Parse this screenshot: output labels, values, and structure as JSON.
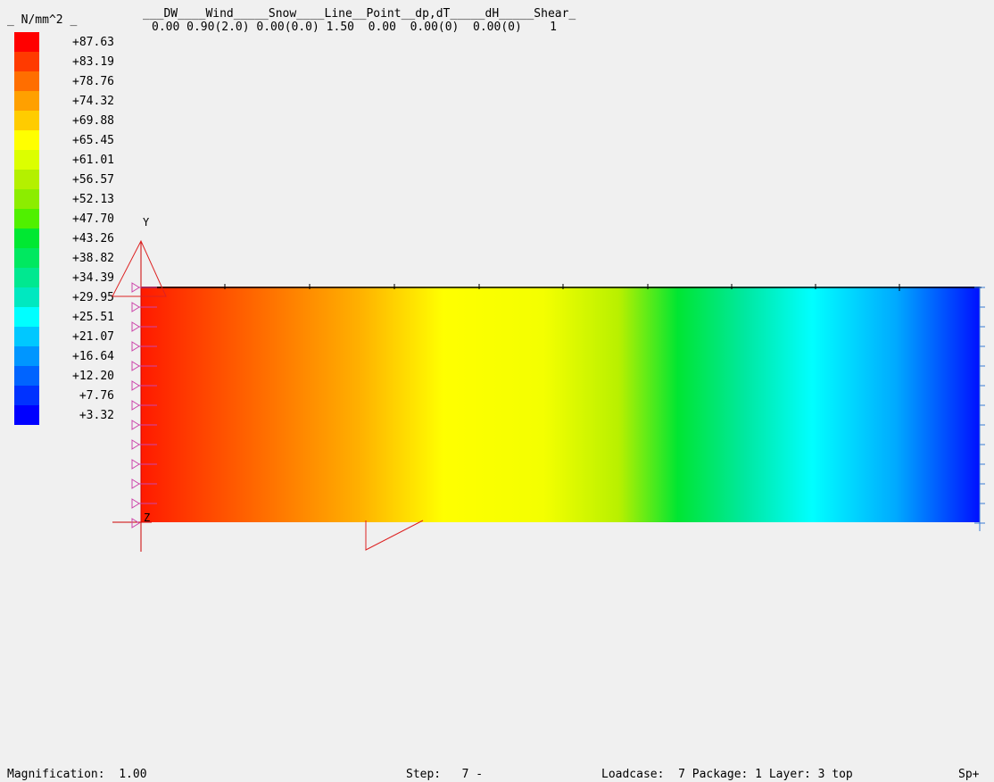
{
  "legend": {
    "unit": "_ N/mm^2 _",
    "entries": [
      {
        "value": "+87.63",
        "color": "#ff0000"
      },
      {
        "value": "+83.19",
        "color": "#ff3a00"
      },
      {
        "value": "+78.76",
        "color": "#ff6e00"
      },
      {
        "value": "+74.32",
        "color": "#ffa000"
      },
      {
        "value": "+69.88",
        "color": "#ffcc00"
      },
      {
        "value": "+65.45",
        "color": "#ffff00"
      },
      {
        "value": "+61.01",
        "color": "#dcff00"
      },
      {
        "value": "+56.57",
        "color": "#b4f000"
      },
      {
        "value": "+52.13",
        "color": "#8ced00"
      },
      {
        "value": "+47.70",
        "color": "#50f000"
      },
      {
        "value": "+43.26",
        "color": "#00e832"
      },
      {
        "value": "+38.82",
        "color": "#00e860"
      },
      {
        "value": "+34.39",
        "color": "#00e890"
      },
      {
        "value": "+29.95",
        "color": "#00e8c0"
      },
      {
        "value": "+25.51",
        "color": "#00ffff"
      },
      {
        "value": "+21.07",
        "color": "#00c8ff"
      },
      {
        "value": "+16.64",
        "color": "#0096ff"
      },
      {
        "value": "+12.20",
        "color": "#0064ff"
      },
      {
        "value": "+7.76",
        "color": "#0032ff"
      },
      {
        "value": "+3.32",
        "color": "#0000ff"
      }
    ]
  },
  "load_table": {
    "header": "___DW____Wind_____Snow____Line__Point__dp,dT_____dH_____Shear_",
    "values": "0.00 0.90(2.0) 0.00(0.0) 1.50  0.00  0.00(0)  0.00(0)    1"
  },
  "model": {
    "axis_y_label": "Y",
    "axis_z_label": "Z"
  },
  "status_bar": {
    "magnification": "Magnification:  1.00",
    "step": "Step:   7 -",
    "loadcase": "Loadcase:  7 Package: 1 Layer: 3 top",
    "suffix": "Sp+"
  }
}
